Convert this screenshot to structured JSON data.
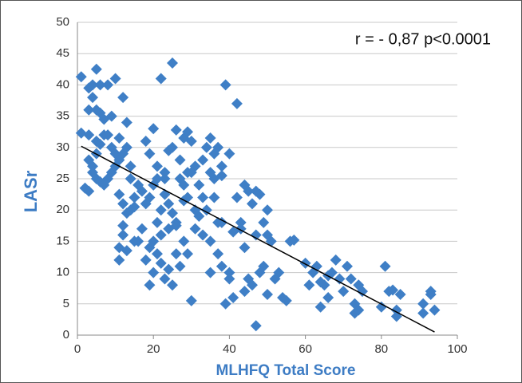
{
  "chart_data": {
    "type": "scatter",
    "y_label": "LASr",
    "x_label": "MLHFQ Total Score",
    "annotation": "r = - 0,87 p<0.0001",
    "xlim": [
      0,
      100
    ],
    "xticks": [
      0,
      20,
      40,
      60,
      80,
      100
    ],
    "ylim": [
      0,
      50
    ],
    "yticks": [
      0,
      5,
      10,
      15,
      20,
      25,
      30,
      35,
      40,
      45,
      50
    ],
    "grid": true,
    "series": [
      {
        "color": "#3f7fc6",
        "x": [
          1,
          1,
          3,
          3,
          3,
          4,
          5,
          6,
          4,
          5,
          6,
          7,
          8,
          10,
          12,
          9,
          13,
          3,
          4,
          5,
          2,
          3,
          4,
          5,
          6,
          7,
          8,
          9,
          10,
          11,
          5,
          6,
          7,
          8,
          9,
          10,
          11,
          12,
          13,
          14,
          11,
          12,
          13,
          14,
          15,
          16,
          17,
          11,
          12,
          11,
          12,
          13,
          14,
          15,
          16,
          18,
          19,
          20,
          22,
          25,
          21,
          23,
          24,
          25,
          26,
          27,
          28,
          29,
          30,
          27,
          28,
          29,
          31,
          33,
          34,
          35,
          36,
          37,
          38,
          39,
          40,
          42,
          18,
          19,
          20,
          21,
          22,
          23,
          24,
          25,
          26,
          18,
          19,
          20,
          21,
          19,
          20,
          22,
          23,
          24,
          25,
          26,
          27,
          28,
          29,
          30,
          31,
          32,
          33,
          34,
          35,
          36,
          37,
          38,
          39,
          40,
          41,
          42,
          43,
          44,
          45,
          46,
          47,
          48,
          49,
          50,
          50,
          51,
          44,
          45,
          46,
          47,
          48,
          49,
          50,
          53,
          55,
          56,
          57,
          60,
          61,
          63,
          64,
          65,
          66,
          67,
          68,
          69,
          70,
          71,
          72,
          73,
          74,
          75,
          73,
          74,
          80,
          81,
          82,
          83,
          84,
          84,
          85,
          91,
          91,
          93,
          94,
          93,
          64,
          66,
          62,
          36,
          38,
          33,
          35,
          32,
          30,
          28,
          24,
          22,
          17,
          15,
          21,
          23,
          31,
          29,
          26,
          35,
          37,
          38,
          40,
          41,
          43,
          44,
          47,
          52,
          54
        ],
        "values": [
          41.3,
          32.3,
          32,
          36,
          39.5,
          40,
          42.5,
          40,
          38,
          36,
          35.5,
          34.5,
          40,
          41,
          38,
          35,
          34,
          28,
          27,
          29,
          23.5,
          23,
          26,
          31,
          30.5,
          32,
          32,
          30,
          29,
          31.5,
          25,
          24.5,
          24,
          25,
          26,
          27,
          28,
          29,
          30,
          27,
          22.5,
          21,
          19.5,
          20,
          22,
          24,
          23,
          14,
          16,
          12,
          17.5,
          13.5,
          25,
          20.5,
          15,
          31,
          29,
          33,
          41,
          43.5,
          27,
          26,
          29.5,
          30,
          32.8,
          28,
          31.5,
          32.5,
          31,
          25,
          24,
          26,
          27,
          28,
          30,
          31.5,
          29,
          30,
          27,
          40,
          29,
          37,
          21,
          22,
          24,
          25,
          20,
          22.5,
          21,
          19.5,
          18,
          12,
          14,
          15,
          13,
          8,
          10,
          11.5,
          9,
          10.5,
          8,
          13,
          11,
          15,
          13,
          5.5,
          17,
          19,
          16,
          20,
          15,
          22,
          18,
          11,
          5,
          10,
          16.5,
          22,
          17,
          24,
          23,
          21,
          23,
          22.5,
          18,
          20,
          16,
          15,
          7,
          9,
          8,
          1.5,
          10,
          11,
          6.5,
          10,
          5.5,
          15,
          15.2,
          11.5,
          8,
          11,
          4.5,
          8,
          6,
          10,
          12,
          9,
          7,
          11,
          9,
          5,
          8,
          7,
          3.5,
          4,
          4.5,
          11,
          7,
          7.2,
          4,
          3,
          6.5,
          5,
          3.5,
          7,
          4,
          6.5,
          8.5,
          9.5,
          10,
          25,
          25.5,
          22,
          26,
          24,
          26,
          21.5,
          17,
          16,
          17,
          15,
          18,
          25,
          20,
          22,
          17.5,
          10,
          13,
          18,
          9,
          6,
          18,
          14,
          16,
          9,
          6
        ]
      }
    ],
    "trendline": {
      "color": "#000000",
      "x": [
        1,
        94
      ],
      "values": [
        30.2,
        0.5
      ]
    }
  }
}
